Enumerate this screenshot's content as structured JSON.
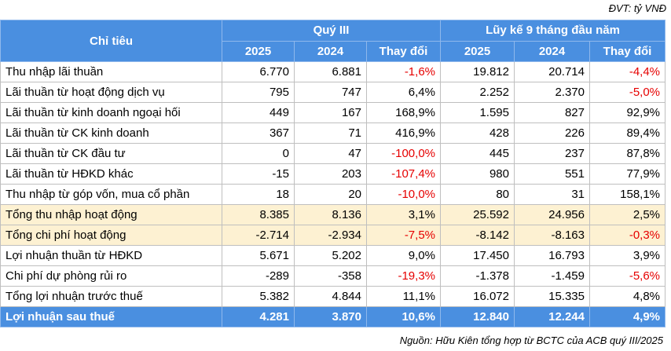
{
  "unit_label": "ĐVT: tỷ VNĐ",
  "header": {
    "indicator": "Chỉ tiêu",
    "group1": "Quý III",
    "group2": "Lũy kế 9 tháng đầu năm",
    "sub": [
      "2025",
      "2024",
      "Thay đổi",
      "2025",
      "2024",
      "Thay đổi"
    ]
  },
  "rows": [
    {
      "label": "Thu nhập lãi thuần",
      "q2025": "6.770",
      "q2024": "6.881",
      "qchg": "-1,6%",
      "y2025": "19.812",
      "y2024": "20.714",
      "ychg": "-4,4%"
    },
    {
      "label": "Lãi thuần từ hoạt động dịch vụ",
      "q2025": "795",
      "q2024": "747",
      "qchg": "6,4%",
      "y2025": "2.252",
      "y2024": "2.370",
      "ychg": "-5,0%"
    },
    {
      "label": "Lãi thuần từ kinh doanh ngoại hối",
      "q2025": "449",
      "q2024": "167",
      "qchg": "168,9%",
      "y2025": "1.595",
      "y2024": "827",
      "ychg": "92,9%"
    },
    {
      "label": "Lãi thuần từ CK kinh doanh",
      "q2025": "367",
      "q2024": "71",
      "qchg": "416,9%",
      "y2025": "428",
      "y2024": "226",
      "ychg": "89,4%"
    },
    {
      "label": "Lãi thuần từ CK đầu tư",
      "q2025": "0",
      "q2024": "47",
      "qchg": "-100,0%",
      "y2025": "445",
      "y2024": "237",
      "ychg": "87,8%"
    },
    {
      "label": "Lãi thuần từ HĐKD khác",
      "q2025": "-15",
      "q2024": "203",
      "qchg": "-107,4%",
      "y2025": "980",
      "y2024": "551",
      "ychg": "77,9%"
    },
    {
      "label": "Thu nhập từ góp vốn, mua cổ phần",
      "q2025": "18",
      "q2024": "20",
      "qchg": "-10,0%",
      "y2025": "80",
      "y2024": "31",
      "ychg": "158,1%"
    },
    {
      "label": "Tổng thu nhập hoạt động",
      "q2025": "8.385",
      "q2024": "8.136",
      "qchg": "3,1%",
      "y2025": "25.592",
      "y2024": "24.956",
      "ychg": "2,5%",
      "highlight": true
    },
    {
      "label": "Tổng chi phí hoạt động",
      "q2025": "-2.714",
      "q2024": "-2.934",
      "qchg": "-7,5%",
      "y2025": "-8.142",
      "y2024": "-8.163",
      "ychg": "-0,3%",
      "highlight": true
    },
    {
      "label": "Lợi nhuận thuần từ HĐKD",
      "q2025": "5.671",
      "q2024": "5.202",
      "qchg": "9,0%",
      "y2025": "17.450",
      "y2024": "16.793",
      "ychg": "3,9%"
    },
    {
      "label": "Chi phí dự phòng rủi ro",
      "q2025": "-289",
      "q2024": "-358",
      "qchg": "-19,3%",
      "y2025": "-1.378",
      "y2024": "-1.459",
      "ychg": "-5,6%"
    },
    {
      "label": "Tổng lợi nhuận trước thuế",
      "q2025": "5.382",
      "q2024": "4.844",
      "qchg": "11,1%",
      "y2025": "16.072",
      "y2024": "15.335",
      "ychg": "4,8%"
    },
    {
      "label": "Lợi nhuận sau thuế",
      "q2025": "4.281",
      "q2024": "3.870",
      "qchg": "10,6%",
      "y2025": "12.840",
      "y2024": "12.244",
      "ychg": "4,9%",
      "final": true
    }
  ],
  "source": "Nguồn: Hữu Kiên tổng hợp từ BCTC của ACB quý III/2025",
  "colors": {
    "header_bg": "#4a8fe0",
    "highlight_bg": "#fdf1d2",
    "negative": "#e60000"
  }
}
